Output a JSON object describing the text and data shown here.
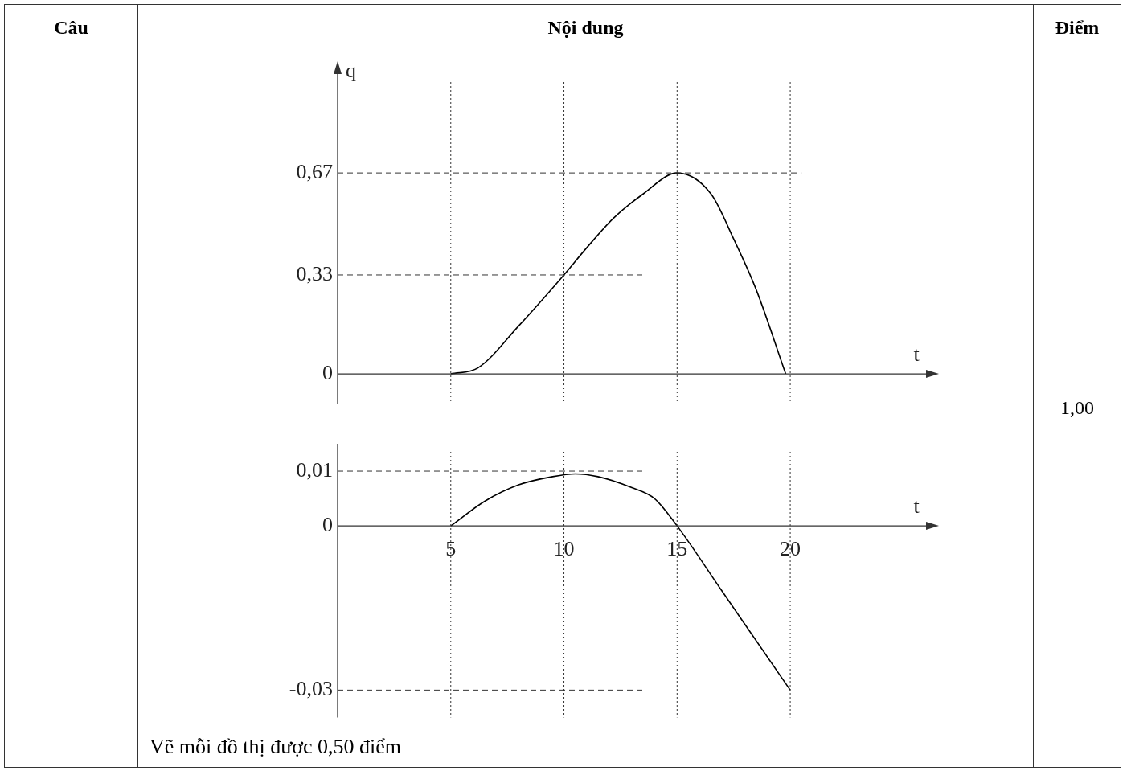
{
  "chart_data": [
    {
      "type": "line",
      "ylabel": "q",
      "xlabel": "t",
      "xlim": [
        0,
        26
      ],
      "ylim": [
        -0.1,
        1.0
      ],
      "yticks": [
        {
          "value": 0,
          "label": "0"
        },
        {
          "value": 0.33,
          "label": "0,33"
        },
        {
          "value": 0.67,
          "label": "0,67"
        }
      ],
      "tick_labels": "y",
      "marker": "none",
      "series": [
        {
          "color": "#000000",
          "x": [
            5,
            6.2,
            8,
            10,
            11,
            12.2,
            13.5,
            15,
            16.5,
            17.5,
            18.5,
            19.8
          ],
          "values": [
            0,
            0.02,
            0.16,
            0.33,
            0.42,
            0.52,
            0.6,
            0.67,
            0.6,
            0.45,
            0.28,
            0
          ]
        }
      ],
      "ref_lines": [
        {
          "axis": "y",
          "value": 0.67,
          "line_style": "dashed"
        },
        {
          "axis": "y",
          "value": 0.33,
          "line_style": "dashed"
        },
        {
          "axis": "x",
          "value": 5,
          "line_style": "dotted"
        },
        {
          "axis": "x",
          "value": 10,
          "line_style": "dotted"
        },
        {
          "axis": "x",
          "value": 15,
          "line_style": "dotted"
        },
        {
          "axis": "x",
          "value": 20,
          "line_style": "dotted"
        }
      ]
    },
    {
      "type": "line",
      "xlabel": "t",
      "xlim": [
        0,
        26
      ],
      "ylim": [
        -0.035,
        0.015
      ],
      "xticks": [
        5,
        10,
        15,
        20
      ],
      "yticks": [
        {
          "value": -0.03,
          "label": "-0,03"
        },
        {
          "value": 0,
          "label": "0"
        },
        {
          "value": 0.01,
          "label": "0,01"
        }
      ],
      "marker": "none",
      "series": [
        {
          "color": "#000000",
          "x": [
            5,
            6.5,
            8,
            9.5,
            10.5,
            11.5,
            13,
            14,
            15,
            17,
            20
          ],
          "values": [
            0,
            0.0045,
            0.0075,
            0.009,
            0.0095,
            0.009,
            0.007,
            0.005,
            0,
            -0.012,
            -0.03
          ]
        }
      ],
      "ref_lines": [
        {
          "axis": "y",
          "value": 0.01,
          "line_style": "dashed"
        },
        {
          "axis": "y",
          "value": -0.03,
          "line_style": "dashed"
        },
        {
          "axis": "x",
          "value": 5,
          "line_style": "dotted"
        },
        {
          "axis": "x",
          "value": 10,
          "line_style": "dotted"
        },
        {
          "axis": "x",
          "value": 15,
          "line_style": "dotted"
        },
        {
          "axis": "x",
          "value": 20,
          "line_style": "dotted"
        }
      ]
    },
    {
      "type": "other",
      "annotations": [
        "Câu",
        "Nội dung",
        "Điểm",
        "1,00",
        "Vẽ mỗi đồ thị được 0,50 điểm"
      ]
    }
  ]
}
